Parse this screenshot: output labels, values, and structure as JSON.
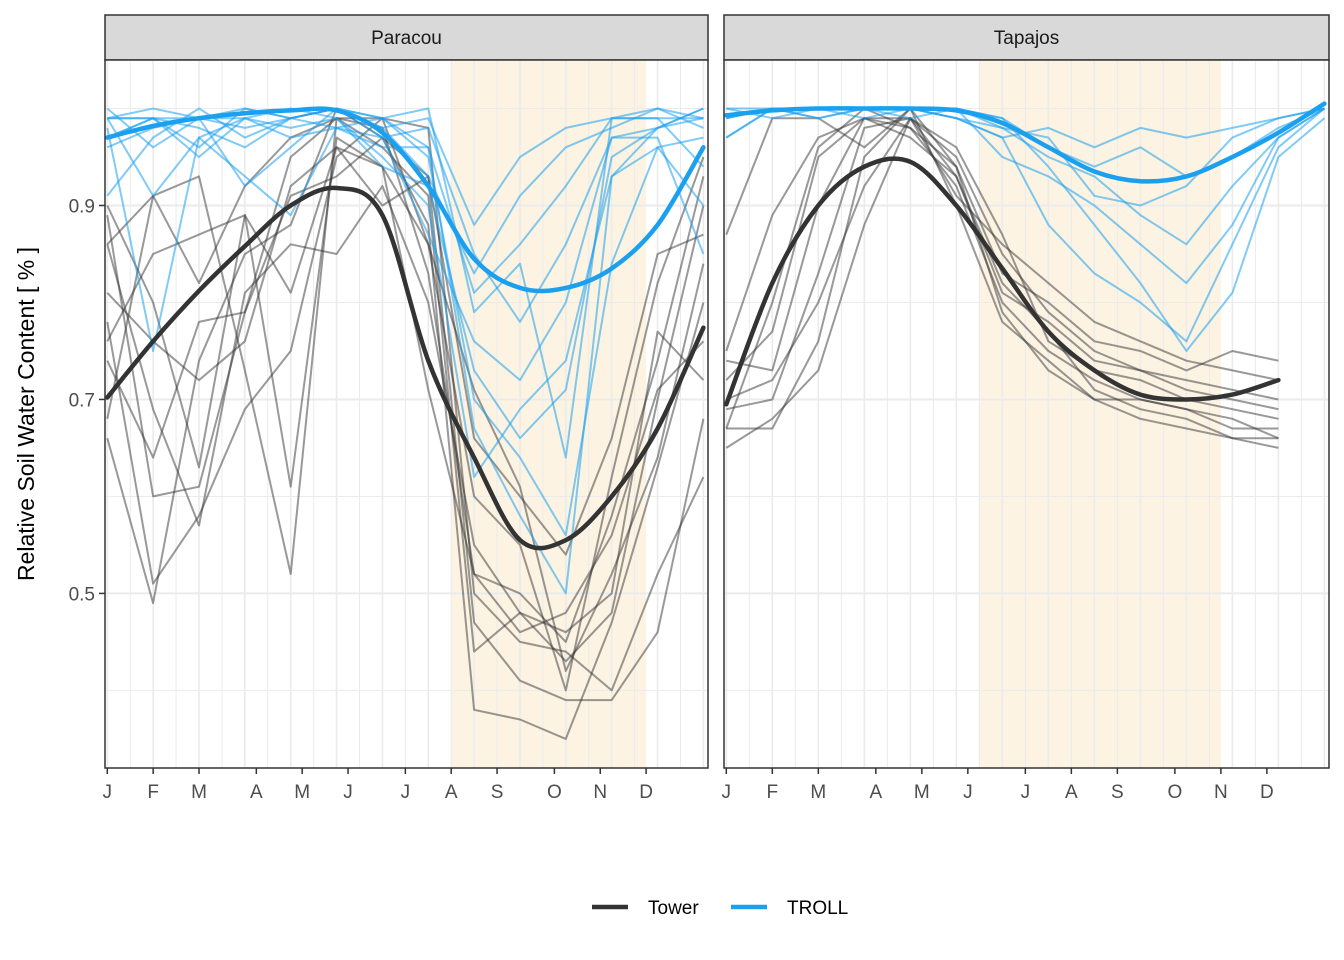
{
  "chart_data": {
    "type": "line",
    "ylabel": "Relative Soil Water Content [ % ]",
    "xlabel": "",
    "ylim": [
      0.32,
      1.05
    ],
    "xlim": [
      -0.05,
      13.1
    ],
    "y_major_ticks": [
      0.5,
      0.7,
      0.9
    ],
    "y_minor_ticks": [
      0.4,
      0.6,
      0.8,
      1.0
    ],
    "x_tick_labels": [
      "J",
      "F",
      "M",
      "A",
      "M",
      "J",
      "J",
      "A",
      "S",
      "O",
      "N",
      "D"
    ],
    "x_ticks": [
      0,
      1,
      2,
      3.25,
      4.25,
      5.25,
      6.5,
      7.5,
      8.5,
      9.75,
      10.75,
      11.75
    ],
    "grid": true,
    "legend": {
      "position": "bottom",
      "entries": [
        {
          "name": "Tower",
          "color": "#333333"
        },
        {
          "name": "TROLL",
          "color": "#1aa0ee"
        }
      ]
    },
    "colors": {
      "tower": "#333333",
      "troll": "#1aa0ee",
      "dry_season_fill": "#fdf3e3",
      "strip_fill": "#d9d9d9",
      "grid": "#ebebeb"
    },
    "panels": [
      {
        "strip": "Paracou",
        "dry_season": [
          7.5,
          11.75
        ],
        "series": [
          {
            "name": "Tower",
            "x": [
              0,
              1,
              2,
              3,
              4,
              5,
              6,
              7,
              8,
              9,
              10,
              11,
              12,
              13
            ],
            "y": [
              0.702,
              0.76,
              0.812,
              0.858,
              0.9,
              0.918,
              0.89,
              0.74,
              0.64,
              0.555,
              0.555,
              0.6,
              0.67,
              0.774
            ]
          },
          {
            "name": "TROLL",
            "x": [
              0,
              1,
              2,
              3,
              4,
              5,
              6,
              7,
              8,
              9,
              10,
              11,
              12,
              13
            ],
            "y": [
              0.97,
              0.982,
              0.99,
              0.995,
              0.998,
              0.998,
              0.975,
              0.92,
              0.845,
              0.815,
              0.815,
              0.835,
              0.88,
              0.96
            ]
          }
        ],
        "tower_replicates": [
          [
            0.78,
            0.51,
            0.58,
            0.69,
            0.75,
            0.95,
            0.99,
            0.98,
            0.5,
            0.45,
            0.44,
            0.4,
            0.52,
            0.62
          ],
          [
            0.66,
            0.49,
            0.74,
            0.85,
            0.88,
            1.0,
            0.97,
            0.93,
            0.47,
            0.41,
            0.39,
            0.39,
            0.46,
            0.68
          ],
          [
            0.89,
            0.6,
            0.61,
            0.79,
            0.91,
            0.93,
            0.97,
            0.88,
            0.38,
            0.37,
            0.35,
            0.47,
            0.63,
            0.8
          ],
          [
            0.86,
            0.69,
            0.57,
            0.81,
            0.86,
            0.85,
            0.92,
            0.8,
            0.55,
            0.48,
            0.43,
            0.48,
            0.7,
            0.9
          ],
          [
            0.81,
            0.76,
            0.72,
            0.76,
            0.92,
            0.96,
            0.94,
            0.71,
            0.52,
            0.5,
            0.45,
            0.58,
            0.74,
            0.93
          ],
          [
            0.76,
            0.85,
            0.87,
            0.89,
            0.61,
            0.97,
            0.94,
            0.86,
            0.6,
            0.55,
            0.4,
            0.62,
            0.82,
            0.95
          ],
          [
            0.68,
            0.91,
            0.93,
            0.73,
            0.52,
            0.99,
            0.96,
            0.91,
            0.44,
            0.48,
            0.46,
            0.5,
            0.77,
            0.72
          ],
          [
            0.9,
            0.8,
            0.63,
            0.89,
            0.81,
            0.96,
            0.9,
            0.93,
            0.66,
            0.6,
            0.54,
            0.66,
            0.85,
            0.87
          ],
          [
            0.74,
            0.64,
            0.78,
            0.79,
            0.95,
            0.99,
            0.98,
            0.83,
            0.52,
            0.46,
            0.48,
            0.56,
            0.71,
            0.76
          ],
          [
            0.86,
            0.91,
            0.82,
            0.92,
            0.97,
            0.99,
            0.99,
            0.86,
            0.71,
            0.61,
            0.42,
            0.52,
            0.64,
            0.84
          ]
        ],
        "troll_replicates": [
          [
            0.97,
            0.99,
            0.99,
            1.0,
            0.99,
            1.0,
            0.99,
            1.0,
            0.79,
            0.84,
            0.64,
            0.99,
            0.99,
            0.99
          ],
          [
            0.99,
            0.91,
            0.97,
            0.93,
            0.89,
            0.98,
            0.96,
            0.96,
            0.67,
            0.58,
            0.5,
            0.93,
            0.98,
            0.99
          ],
          [
            0.97,
            0.99,
            0.95,
            0.99,
            0.98,
            0.99,
            0.94,
            0.92,
            0.73,
            0.66,
            0.71,
            0.95,
            0.98,
            1.0
          ],
          [
            0.91,
            0.97,
            1.0,
            0.97,
            0.99,
            1.0,
            0.98,
            0.99,
            0.88,
            0.95,
            0.98,
            0.99,
            1.0,
            0.98
          ],
          [
            0.99,
            0.99,
            0.96,
            1.0,
            0.99,
            0.98,
            0.97,
            0.87,
            0.76,
            0.72,
            0.8,
            0.97,
            0.97,
            0.85
          ],
          [
            1.0,
            0.96,
            0.99,
            0.92,
            0.96,
            1.0,
            0.99,
            0.96,
            0.81,
            0.86,
            0.92,
            0.99,
            0.99,
            0.94
          ],
          [
            0.98,
            0.75,
            0.97,
            0.99,
            1.0,
            0.99,
            0.95,
            0.9,
            0.62,
            0.69,
            0.74,
            0.93,
            0.96,
            0.9
          ],
          [
            0.99,
            0.99,
            0.98,
            0.96,
            0.99,
            1.0,
            0.97,
            0.98,
            0.85,
            0.78,
            0.86,
            0.97,
            0.98,
            1.0
          ],
          [
            0.96,
            0.98,
            0.99,
            0.99,
            0.97,
            0.98,
            0.99,
            0.95,
            0.7,
            0.64,
            0.56,
            0.84,
            0.96,
            0.97
          ],
          [
            0.99,
            1.0,
            0.99,
            0.98,
            0.99,
            1.0,
            0.98,
            0.93,
            0.83,
            0.91,
            0.96,
            0.98,
            1.0,
            0.99
          ]
        ]
      },
      {
        "strip": "Tapajos",
        "dry_season": [
          5.5,
          10.75
        ],
        "series": [
          {
            "name": "Tower",
            "x": [
              0,
              1,
              2,
              3,
              4,
              5,
              6,
              7,
              8,
              9,
              10,
              11,
              12
            ],
            "y": [
              0.695,
              0.82,
              0.9,
              0.94,
              0.945,
              0.9,
              0.835,
              0.77,
              0.73,
              0.705,
              0.7,
              0.705,
              0.72
            ]
          },
          {
            "name": "TROLL",
            "x": [
              0,
              1,
              2,
              3,
              4,
              5,
              6,
              7,
              8,
              9,
              10,
              11,
              12,
              13
            ],
            "y": [
              0.993,
              0.998,
              1.0,
              1.0,
              1.0,
              0.998,
              0.985,
              0.96,
              0.935,
              0.925,
              0.93,
              0.95,
              0.975,
              1.005
            ]
          }
        ],
        "tower_replicates": [
          [
            0.75,
            0.89,
            0.97,
            0.99,
            0.99,
            0.95,
            0.85,
            0.79,
            0.75,
            0.73,
            0.72,
            0.71,
            0.7
          ],
          [
            0.67,
            0.8,
            0.96,
            1.0,
            0.98,
            0.92,
            0.8,
            0.75,
            0.72,
            0.7,
            0.69,
            0.67,
            0.67
          ],
          [
            0.72,
            0.77,
            0.95,
            0.99,
            0.97,
            0.93,
            0.82,
            0.77,
            0.71,
            0.69,
            0.68,
            0.66,
            0.66
          ],
          [
            0.87,
            0.99,
            0.99,
            0.96,
            1.0,
            0.9,
            0.78,
            0.74,
            0.7,
            0.68,
            0.67,
            0.66,
            0.65
          ],
          [
            0.65,
            0.68,
            0.73,
            0.88,
            0.99,
            0.91,
            0.86,
            0.82,
            0.78,
            0.76,
            0.74,
            0.73,
            0.72
          ],
          [
            0.67,
            0.67,
            0.76,
            0.95,
            1.0,
            0.94,
            0.83,
            0.8,
            0.76,
            0.75,
            0.73,
            0.75,
            0.74
          ],
          [
            0.69,
            0.7,
            0.83,
            0.98,
            0.99,
            0.96,
            0.87,
            0.76,
            0.73,
            0.72,
            0.7,
            0.69,
            0.68
          ],
          [
            0.74,
            0.73,
            0.9,
            0.99,
            0.98,
            0.94,
            0.79,
            0.73,
            0.7,
            0.7,
            0.69,
            0.68,
            0.66
          ],
          [
            0.7,
            0.72,
            0.8,
            0.92,
            0.99,
            0.93,
            0.81,
            0.78,
            0.74,
            0.73,
            0.71,
            0.7,
            0.69
          ]
        ],
        "troll_replicates": [
          [
            0.99,
            1.0,
            1.0,
            1.0,
            1.0,
            0.99,
            0.97,
            0.88,
            0.83,
            0.8,
            0.76,
            0.86,
            0.96,
            1.0
          ],
          [
            0.97,
            1.0,
            0.99,
            1.0,
            1.0,
            1.0,
            0.95,
            0.93,
            0.9,
            0.86,
            0.82,
            0.88,
            0.97,
            1.0
          ],
          [
            1.0,
            1.0,
            0.99,
            1.0,
            0.99,
            1.0,
            0.99,
            0.96,
            0.94,
            0.96,
            0.93,
            0.95,
            0.98,
            1.0
          ],
          [
            0.99,
            1.0,
            1.0,
            0.99,
            1.0,
            0.99,
            0.98,
            0.97,
            0.91,
            0.9,
            0.92,
            0.97,
            0.99,
            1.0
          ],
          [
            1.0,
            0.99,
            1.0,
            1.0,
            1.0,
            1.0,
            0.99,
            0.94,
            0.88,
            0.82,
            0.75,
            0.81,
            0.95,
            0.99
          ],
          [
            0.97,
            1.0,
            1.0,
            1.0,
            1.0,
            0.99,
            0.97,
            0.98,
            0.96,
            0.98,
            0.97,
            0.98,
            0.99,
            1.0
          ],
          [
            0.99,
            1.0,
            1.0,
            1.0,
            1.0,
            1.0,
            0.98,
            0.95,
            0.93,
            0.89,
            0.86,
            0.92,
            0.97,
            1.0
          ]
        ]
      }
    ]
  }
}
